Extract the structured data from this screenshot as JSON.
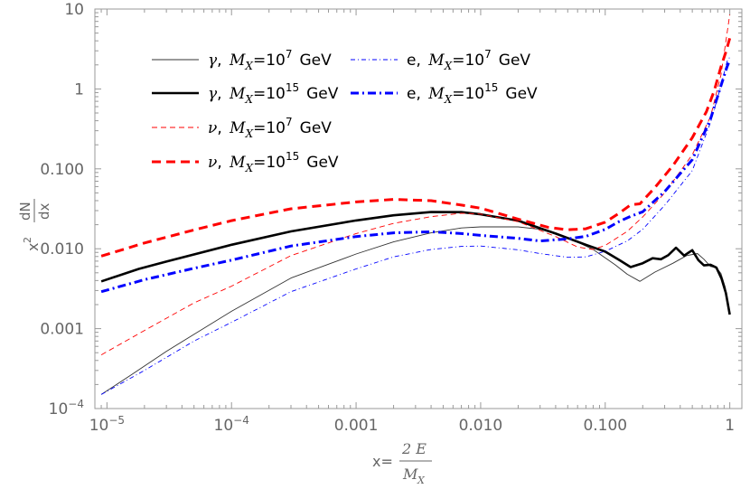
{
  "chart_data": {
    "type": "line",
    "xscale": "log",
    "yscale": "log",
    "xlim": [
      8e-06,
      1.25
    ],
    "ylim": [
      0.0001,
      10
    ],
    "x_ticks": [
      {
        "value": 1e-05,
        "base": "10",
        "exp": "−5",
        "label": ""
      },
      {
        "value": 0.0001,
        "base": "10",
        "exp": "−4",
        "label": ""
      },
      {
        "value": 0.001,
        "label": "0.001"
      },
      {
        "value": 0.01,
        "label": "0.010"
      },
      {
        "value": 0.1,
        "label": "0.100"
      },
      {
        "value": 1,
        "label": "1"
      }
    ],
    "y_ticks": [
      {
        "value": 0.0001,
        "base": "10",
        "exp": "−4",
        "label": ""
      },
      {
        "value": 0.001,
        "label": "0.001"
      },
      {
        "value": 0.01,
        "label": "0.010"
      },
      {
        "value": 0.1,
        "label": "0.100"
      },
      {
        "value": 1,
        "label": "1"
      },
      {
        "value": 10,
        "label": "10"
      }
    ],
    "xlabel": {
      "prefix": "x=",
      "numerator": "2 E",
      "denominator": "M",
      "denominator_sub": "X"
    },
    "ylabel": {
      "base": "x",
      "exp": "2",
      "numerator": "dN",
      "denominator": "dx"
    },
    "series": [
      {
        "name": "gamma_1e7",
        "particle": "γ",
        "mass_exponent": "7",
        "color": "#333333",
        "width": 0.9,
        "dash": "",
        "points": [
          [
            9e-06,
            0.00015
          ],
          [
            1.6e-05,
            0.00027
          ],
          [
            3e-05,
            0.00052
          ],
          [
            0.0001,
            0.00165
          ],
          [
            0.0003,
            0.0043
          ],
          [
            0.001,
            0.0086
          ],
          [
            0.002,
            0.0122
          ],
          [
            0.004,
            0.0158
          ],
          [
            0.007,
            0.0182
          ],
          [
            0.01,
            0.0188
          ],
          [
            0.02,
            0.0188
          ],
          [
            0.03,
            0.0175
          ],
          [
            0.05,
            0.0138
          ],
          [
            0.08,
            0.0098
          ],
          [
            0.12,
            0.0063
          ],
          [
            0.15,
            0.0048
          ],
          [
            0.19,
            0.0039
          ],
          [
            0.25,
            0.0051
          ],
          [
            0.35,
            0.0066
          ],
          [
            0.45,
            0.0082
          ],
          [
            0.55,
            0.0087
          ],
          [
            0.62,
            0.0074
          ],
          [
            0.7,
            0.006
          ],
          [
            0.78,
            0.0058
          ],
          [
            0.85,
            0.0049
          ],
          [
            0.92,
            0.0033
          ],
          [
            1.0,
            0.0016
          ]
        ]
      },
      {
        "name": "gamma_1e15",
        "particle": "γ",
        "mass_exponent": "15",
        "color": "#000000",
        "width": 2.6,
        "dash": "",
        "points": [
          [
            9e-06,
            0.0039
          ],
          [
            1.8e-05,
            0.0056
          ],
          [
            3e-05,
            0.0069
          ],
          [
            0.0001,
            0.0112
          ],
          [
            0.0003,
            0.0165
          ],
          [
            0.001,
            0.0226
          ],
          [
            0.002,
            0.0262
          ],
          [
            0.004,
            0.0288
          ],
          [
            0.007,
            0.0287
          ],
          [
            0.01,
            0.027
          ],
          [
            0.02,
            0.0225
          ],
          [
            0.04,
            0.0155
          ],
          [
            0.07,
            0.0112
          ],
          [
            0.1,
            0.0092
          ],
          [
            0.13,
            0.0072
          ],
          [
            0.16,
            0.0059
          ],
          [
            0.2,
            0.0066
          ],
          [
            0.24,
            0.0076
          ],
          [
            0.28,
            0.0074
          ],
          [
            0.32,
            0.0083
          ],
          [
            0.37,
            0.0103
          ],
          [
            0.43,
            0.0082
          ],
          [
            0.5,
            0.0096
          ],
          [
            0.56,
            0.0072
          ],
          [
            0.62,
            0.0062
          ],
          [
            0.7,
            0.0063
          ],
          [
            0.78,
            0.0058
          ],
          [
            0.86,
            0.0042
          ],
          [
            0.93,
            0.0028
          ],
          [
            1.0,
            0.0015
          ]
        ]
      },
      {
        "name": "nu_1e7",
        "particle": "ν",
        "mass_exponent": "7",
        "color": "#ff0000",
        "width": 0.9,
        "dash": "6 4",
        "points": [
          [
            9e-06,
            0.00047
          ],
          [
            2e-05,
            0.00095
          ],
          [
            5e-05,
            0.0021
          ],
          [
            0.0001,
            0.0034
          ],
          [
            0.0003,
            0.0082
          ],
          [
            0.001,
            0.0155
          ],
          [
            0.002,
            0.0208
          ],
          [
            0.004,
            0.0252
          ],
          [
            0.007,
            0.0278
          ],
          [
            0.01,
            0.0272
          ],
          [
            0.02,
            0.0218
          ],
          [
            0.04,
            0.0142
          ],
          [
            0.06,
            0.0105
          ],
          [
            0.08,
            0.0098
          ],
          [
            0.1,
            0.011
          ],
          [
            0.15,
            0.0165
          ],
          [
            0.2,
            0.025
          ],
          [
            0.3,
            0.05
          ],
          [
            0.5,
            0.15
          ],
          [
            0.7,
            0.45
          ],
          [
            0.85,
            1.5
          ],
          [
            1.0,
            8.5
          ]
        ]
      },
      {
        "name": "nu_1e15",
        "particle": "ν",
        "mass_exponent": "15",
        "color": "#ff0000",
        "width": 3.0,
        "dash": "10 6",
        "points": [
          [
            9e-06,
            0.0081
          ],
          [
            2e-05,
            0.0118
          ],
          [
            5e-05,
            0.0172
          ],
          [
            0.0001,
            0.0225
          ],
          [
            0.0003,
            0.0316
          ],
          [
            0.001,
            0.0385
          ],
          [
            0.002,
            0.0415
          ],
          [
            0.004,
            0.04
          ],
          [
            0.007,
            0.0352
          ],
          [
            0.01,
            0.0322
          ],
          [
            0.02,
            0.0235
          ],
          [
            0.035,
            0.0185
          ],
          [
            0.05,
            0.0173
          ],
          [
            0.07,
            0.0178
          ],
          [
            0.1,
            0.0215
          ],
          [
            0.13,
            0.028
          ],
          [
            0.16,
            0.0355
          ],
          [
            0.19,
            0.0365
          ],
          [
            0.25,
            0.058
          ],
          [
            0.35,
            0.11
          ],
          [
            0.5,
            0.245
          ],
          [
            0.65,
            0.52
          ],
          [
            0.75,
            0.95
          ],
          [
            0.85,
            1.9
          ],
          [
            0.93,
            2.9
          ],
          [
            1.0,
            4.3
          ]
        ]
      },
      {
        "name": "e_1e7",
        "particle": "e",
        "mass_exponent": "7",
        "color": "#0000ff",
        "width": 0.9,
        "dash": "5 3 1 3",
        "points": [
          [
            9e-06,
            0.00015
          ],
          [
            2e-05,
            0.0003
          ],
          [
            5e-05,
            0.0007
          ],
          [
            0.0001,
            0.0012
          ],
          [
            0.0003,
            0.0029
          ],
          [
            0.001,
            0.0056
          ],
          [
            0.002,
            0.0079
          ],
          [
            0.004,
            0.0098
          ],
          [
            0.007,
            0.0107
          ],
          [
            0.01,
            0.0108
          ],
          [
            0.02,
            0.0097
          ],
          [
            0.03,
            0.0087
          ],
          [
            0.05,
            0.0078
          ],
          [
            0.07,
            0.0079
          ],
          [
            0.1,
            0.0093
          ],
          [
            0.15,
            0.0125
          ],
          [
            0.2,
            0.0175
          ],
          [
            0.3,
            0.035
          ],
          [
            0.5,
            0.095
          ],
          [
            0.7,
            0.38
          ],
          [
            0.85,
            1.1
          ],
          [
            0.95,
            2.2
          ],
          [
            1.0,
            2.5
          ]
        ]
      },
      {
        "name": "e_1e15",
        "particle": "e",
        "mass_exponent": "15",
        "color": "#0000ff",
        "width": 3.0,
        "dash": "9 4 2 4",
        "points": [
          [
            9e-06,
            0.0029
          ],
          [
            2e-05,
            0.0041
          ],
          [
            5e-05,
            0.0057
          ],
          [
            0.0001,
            0.0072
          ],
          [
            0.0003,
            0.0108
          ],
          [
            0.001,
            0.0142
          ],
          [
            0.002,
            0.0158
          ],
          [
            0.004,
            0.0163
          ],
          [
            0.007,
            0.0155
          ],
          [
            0.01,
            0.0147
          ],
          [
            0.02,
            0.0135
          ],
          [
            0.03,
            0.0125
          ],
          [
            0.05,
            0.0133
          ],
          [
            0.07,
            0.0143
          ],
          [
            0.1,
            0.0175
          ],
          [
            0.13,
            0.022
          ],
          [
            0.16,
            0.0255
          ],
          [
            0.2,
            0.029
          ],
          [
            0.3,
            0.052
          ],
          [
            0.5,
            0.13
          ],
          [
            0.7,
            0.42
          ],
          [
            0.85,
            1.1
          ],
          [
            0.95,
            1.9
          ],
          [
            1.0,
            2.3
          ]
        ]
      }
    ],
    "legend": {
      "placement": "top-left",
      "mass_symbol": "M",
      "mass_sub": "X",
      "equals": "=",
      "mass_base": "10",
      "unit": "GeV",
      "order": [
        "gamma_1e7",
        "gamma_1e15",
        "nu_1e7",
        "nu_1e15",
        "e_1e7",
        "e_1e15"
      ]
    }
  }
}
